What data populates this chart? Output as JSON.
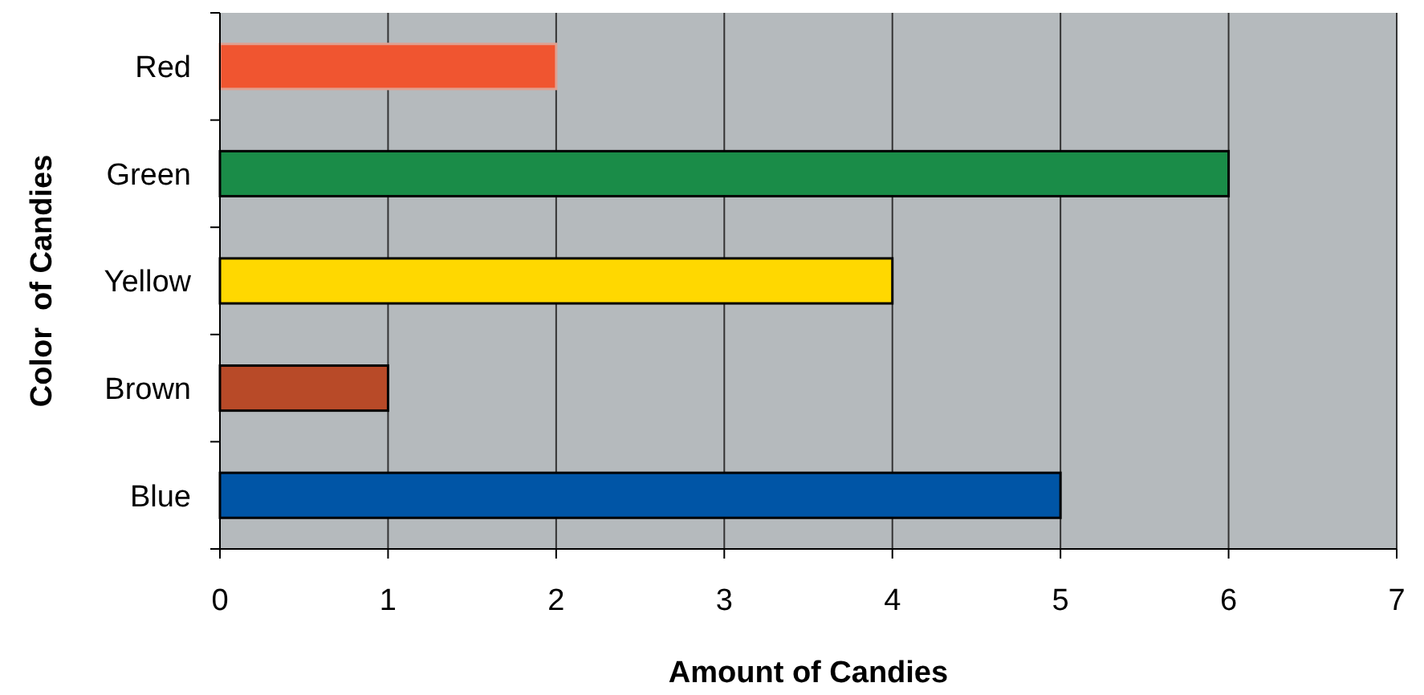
{
  "chart_data": {
    "type": "bar",
    "orientation": "horizontal",
    "xlabel": "Amount of Candies",
    "ylabel": "Color  of Candies",
    "categories": [
      "Red",
      "Green",
      "Yellow",
      "Brown",
      "Blue"
    ],
    "values": [
      2,
      6,
      4,
      1,
      5
    ],
    "colors": [
      "#f05530",
      "#1a8c48",
      "#ffd800",
      "#b84a28",
      "#0055a6"
    ],
    "xlim": [
      0,
      7
    ],
    "xticks": [
      0,
      1,
      2,
      3,
      4,
      5,
      6,
      7
    ],
    "grid": "x"
  }
}
